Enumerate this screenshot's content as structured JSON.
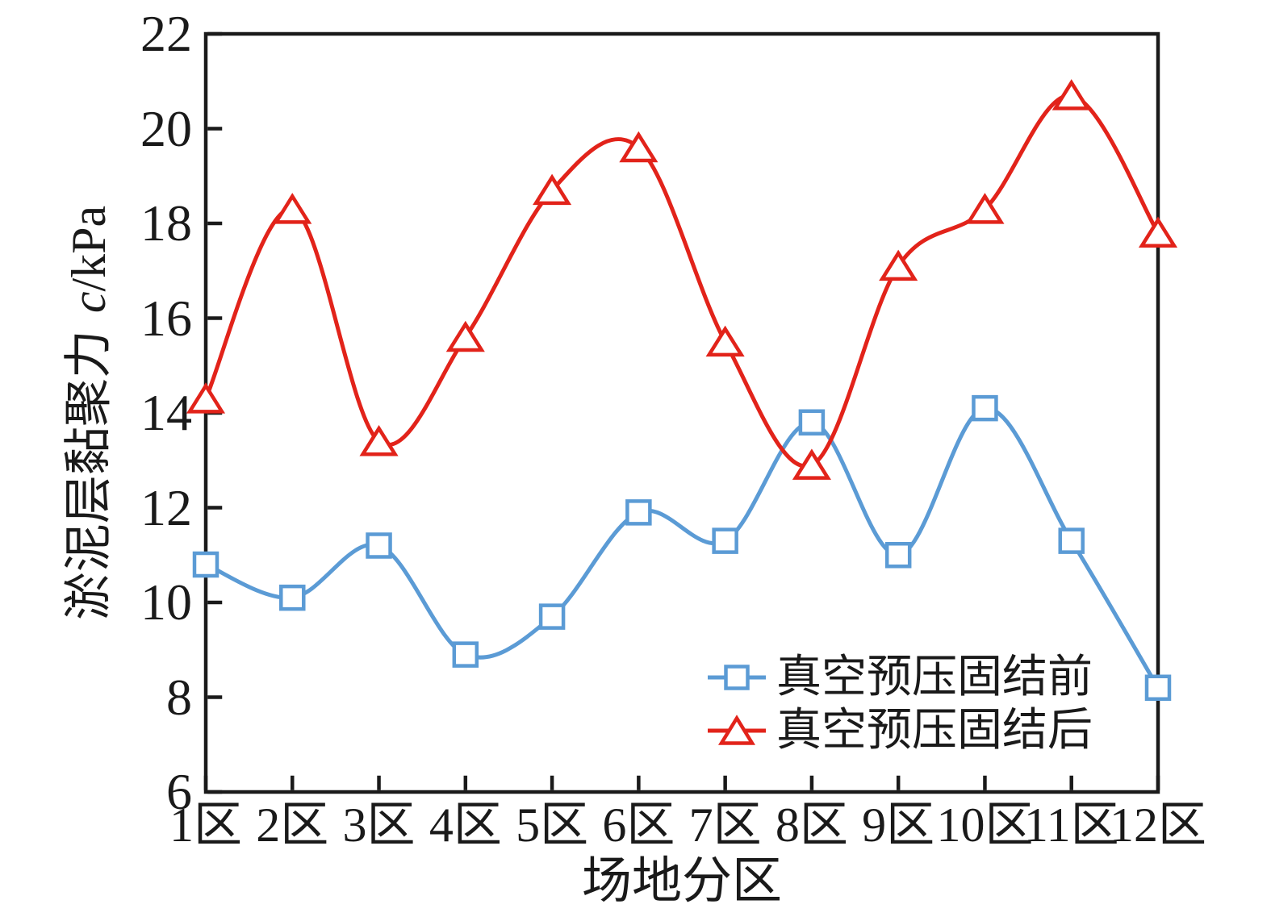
{
  "chart_data": {
    "type": "line",
    "title": "",
    "categories": [
      "1区",
      "2区",
      "3区",
      "4区",
      "5区",
      "6区",
      "7区",
      "8区",
      "9区",
      "10区",
      "11区",
      "12区"
    ],
    "series": [
      {
        "name": "真空预压固结前",
        "marker": "square",
        "color": "#5B9BD5",
        "values": [
          10.8,
          10.1,
          11.2,
          8.9,
          9.7,
          11.9,
          11.3,
          13.8,
          11.0,
          14.1,
          11.3,
          8.2
        ]
      },
      {
        "name": "真空预压固结后",
        "marker": "triangle",
        "color": "#E2231A",
        "values": [
          14.3,
          18.3,
          13.4,
          15.6,
          18.7,
          19.6,
          15.5,
          12.9,
          17.1,
          18.3,
          20.7,
          17.8
        ]
      }
    ],
    "xlabel": "场地分区",
    "ylabel": "淤泥层黏聚力 c/kPa",
    "ylabel_prefix": "淤泥层黏聚力",
    "ylabel_symbol": "c",
    "ylabel_unit": "/kPa",
    "ylim": [
      6,
      22
    ],
    "yticks": [
      6,
      8,
      10,
      12,
      14,
      16,
      18,
      20,
      22
    ],
    "grid": false,
    "smooth": true,
    "legend_position": "inside-bottom-right",
    "axis_color": "#1a1a1a",
    "background": "#ffffff"
  }
}
